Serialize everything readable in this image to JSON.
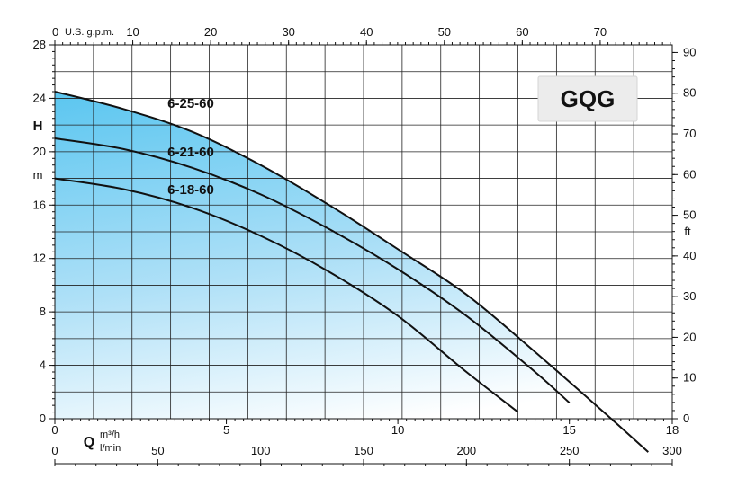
{
  "chart_data": {
    "type": "line",
    "title": "GQG",
    "x_axis": {
      "unit_m3h": "m³/h",
      "range_m3h": [
        0,
        18
      ],
      "ticks_m3h": [
        0,
        5,
        10,
        15,
        18
      ],
      "unit_lmin": "l/min",
      "ticks_lmin": [
        0,
        50,
        100,
        150,
        200,
        250,
        300
      ],
      "label": "Q",
      "top_unit": "U.S. g.p.m.",
      "ticks_gpm": [
        0,
        10,
        20,
        30,
        40,
        50,
        60,
        70
      ]
    },
    "y_axis": {
      "label": "H",
      "unit_m": "m",
      "range_m": [
        0,
        28
      ],
      "ticks_m": [
        0,
        4,
        8,
        12,
        16,
        20,
        24,
        28
      ],
      "right_unit": "ft",
      "ticks_ft": [
        0,
        10,
        20,
        30,
        40,
        50,
        60,
        70,
        80,
        90
      ]
    },
    "grid": true,
    "series": [
      {
        "name": "6-25-60",
        "points": [
          [
            0,
            24.5
          ],
          [
            2,
            23.2
          ],
          [
            4,
            21.5
          ],
          [
            6,
            19
          ],
          [
            8,
            16
          ],
          [
            10,
            12.7
          ],
          [
            12,
            9.3
          ],
          [
            14,
            5
          ],
          [
            16,
            0.5
          ],
          [
            17.3,
            -2.5
          ]
        ]
      },
      {
        "name": "6-21-60",
        "points": [
          [
            0,
            21
          ],
          [
            2,
            20.2
          ],
          [
            4,
            18.8
          ],
          [
            6,
            16.8
          ],
          [
            8,
            14.2
          ],
          [
            10,
            11.2
          ],
          [
            12,
            7.7
          ],
          [
            14,
            3.5
          ],
          [
            15,
            1.2
          ]
        ]
      },
      {
        "name": "6-18-60",
        "points": [
          [
            0,
            18
          ],
          [
            2,
            17.2
          ],
          [
            4,
            15.8
          ],
          [
            6,
            13.7
          ],
          [
            8,
            11
          ],
          [
            10,
            7.7
          ],
          [
            12,
            3.5
          ],
          [
            13.5,
            0.5
          ]
        ]
      }
    ]
  }
}
